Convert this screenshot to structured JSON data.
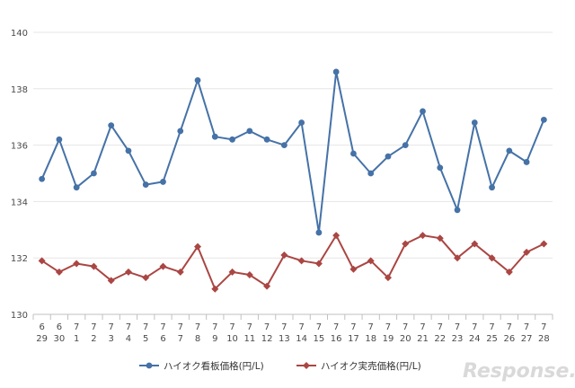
{
  "chart_data": {
    "type": "line",
    "categories": [
      [
        "6",
        "29"
      ],
      [
        "6",
        "30"
      ],
      [
        "7",
        "1"
      ],
      [
        "7",
        "2"
      ],
      [
        "7",
        "3"
      ],
      [
        "7",
        "4"
      ],
      [
        "7",
        "5"
      ],
      [
        "7",
        "6"
      ],
      [
        "7",
        "7"
      ],
      [
        "7",
        "8"
      ],
      [
        "7",
        "9"
      ],
      [
        "7",
        "10"
      ],
      [
        "7",
        "11"
      ],
      [
        "7",
        "12"
      ],
      [
        "7",
        "13"
      ],
      [
        "7",
        "14"
      ],
      [
        "7",
        "15"
      ],
      [
        "7",
        "16"
      ],
      [
        "7",
        "17"
      ],
      [
        "7",
        "18"
      ],
      [
        "7",
        "19"
      ],
      [
        "7",
        "20"
      ],
      [
        "7",
        "21"
      ],
      [
        "7",
        "22"
      ],
      [
        "7",
        "23"
      ],
      [
        "7",
        "24"
      ],
      [
        "7",
        "25"
      ],
      [
        "7",
        "26"
      ],
      [
        "7",
        "27"
      ],
      [
        "7",
        "28"
      ]
    ],
    "series": [
      {
        "name": "ハイオク看板価格(円/L)",
        "color": "#4572a7",
        "marker": "circle",
        "values": [
          134.8,
          136.2,
          134.5,
          135.0,
          136.7,
          135.8,
          134.6,
          134.7,
          136.5,
          138.3,
          136.3,
          136.2,
          136.5,
          136.2,
          136.0,
          136.8,
          132.9,
          138.6,
          135.7,
          135.0,
          135.6,
          136.0,
          137.2,
          135.2,
          133.7,
          136.8,
          134.5,
          135.8,
          135.4,
          136.9
        ]
      },
      {
        "name": "ハイオク実売価格(円/L)",
        "color": "#aa4643",
        "marker": "diamond",
        "values": [
          131.9,
          131.5,
          131.8,
          131.7,
          131.2,
          131.5,
          131.3,
          131.7,
          131.5,
          132.4,
          130.9,
          131.5,
          131.4,
          131.0,
          132.1,
          131.9,
          131.8,
          132.8,
          131.6,
          131.9,
          131.3,
          132.5,
          132.8,
          132.7,
          132.0,
          132.5,
          132.0,
          131.5,
          132.2,
          132.5
        ]
      }
    ],
    "y_ticks": [
      "130",
      "132",
      "134",
      "136",
      "138",
      "140"
    ],
    "ylim": [
      130,
      140
    ],
    "grid": true,
    "legend_position": "bottom",
    "title": "",
    "xlabel": "",
    "ylabel": ""
  },
  "watermark": "Response."
}
